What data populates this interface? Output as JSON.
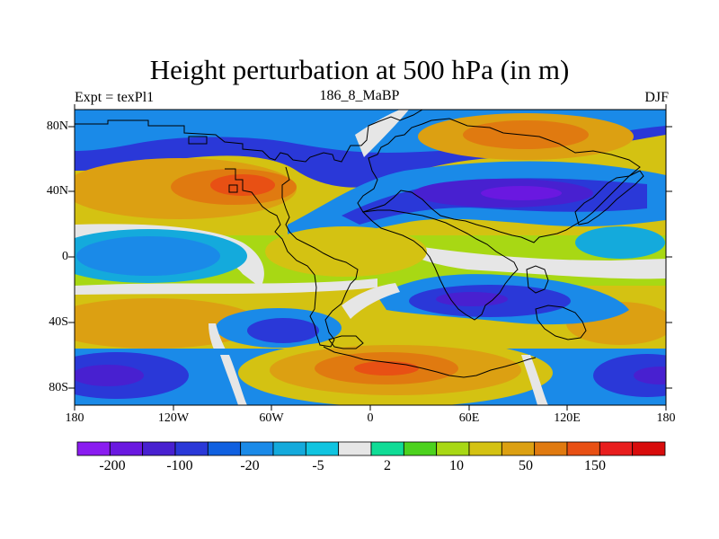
{
  "title": "Height perturbation at 500 hPa (in m)",
  "left_label": "Expt = texPl1",
  "center_label": "186_8_MaBP",
  "right_label": "DJF",
  "lat_ticks": [
    "80N",
    "40N",
    "0",
    "40S",
    "80S"
  ],
  "lon_ticks": [
    "180",
    "120W",
    "60W",
    "0",
    "60E",
    "120E",
    "180"
  ],
  "colorbar": {
    "colors": [
      "#8a1cf0",
      "#6a18e0",
      "#4820d0",
      "#2a38d8",
      "#1060e0",
      "#1a8ae8",
      "#14aadc",
      "#10c4e0",
      "#e6e6e6",
      "#10dc96",
      "#4cd21e",
      "#a8d814",
      "#d4c212",
      "#dca012",
      "#e07a10",
      "#e85014",
      "#e81e1e",
      "#d80c0c"
    ],
    "labels": [
      "-200",
      "-100",
      "-20",
      "-5",
      "2",
      "10",
      "50",
      "150"
    ]
  },
  "chart_data": {
    "type": "heatmap",
    "title": "Height perturbation at 500 hPa (in m)",
    "field": "500 hPa geopotential height perturbation",
    "units": "m",
    "season": "DJF",
    "experiment": "texPl1",
    "case": "186_8_MaBP",
    "projection": "cylindrical equidistant",
    "lon_range": [
      -180,
      180
    ],
    "lat_range": [
      -90,
      90
    ],
    "features": [
      {
        "lon": -65,
        "lat": 42,
        "value": 150
      },
      {
        "lon": 70,
        "lat": 62,
        "value": 70
      },
      {
        "lon": -45,
        "lat": 72,
        "value": -60
      },
      {
        "lon": 95,
        "lat": 38,
        "value": -130
      },
      {
        "lon": 50,
        "lat": 25,
        "value": -60
      },
      {
        "lon": -140,
        "lat": 0,
        "value": -20
      },
      {
        "lon": -15,
        "lat": 0,
        "value": 30
      },
      {
        "lon": 70,
        "lat": -20,
        "value": -40
      },
      {
        "lon": -55,
        "lat": -45,
        "value": -70
      },
      {
        "lon": -160,
        "lat": -45,
        "value": 40
      },
      {
        "lon": 130,
        "lat": -45,
        "value": 40
      },
      {
        "lon": 0,
        "lat": -75,
        "value": 160
      },
      {
        "lon": -160,
        "lat": -75,
        "value": -200
      },
      {
        "lon": 170,
        "lat": -75,
        "value": -200
      }
    ]
  }
}
